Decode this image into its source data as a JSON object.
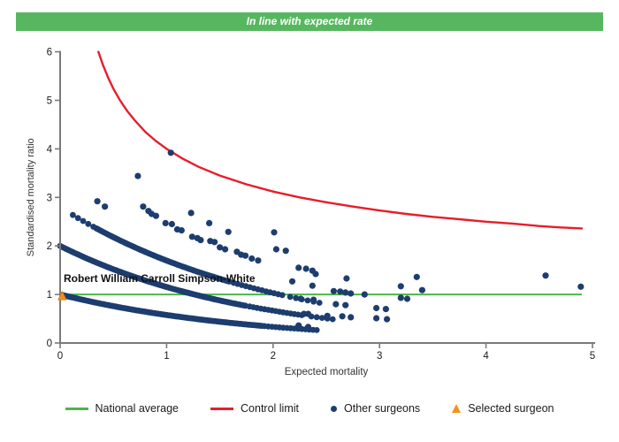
{
  "banner": {
    "title": "In line with expected rate",
    "bg_color": "#57b760",
    "text_color": "#ffffff"
  },
  "chart_data": {
    "type": "scatter",
    "title": "",
    "xlabel": "Expected mortality",
    "ylabel": "Standardised mortality ratio",
    "xlim": [
      0,
      5
    ],
    "ylim": [
      0,
      6
    ],
    "x_ticks": [
      0,
      1,
      2,
      3,
      4,
      5
    ],
    "y_ticks": [
      0,
      1,
      2,
      3,
      4,
      5,
      6
    ],
    "grid": false,
    "axis_color": "#7a7a7a",
    "national_average": {
      "label": "National average",
      "y": 1.0,
      "x_start": 0.0,
      "x_end": 4.9,
      "color": "#4bb648"
    },
    "control_limit": {
      "label": "Control limit",
      "color": "#e71d2b",
      "formula": "SMR = 1 + 3/sqrt(E)",
      "points": [
        [
          0.36,
          6.0
        ],
        [
          0.4,
          5.74
        ],
        [
          0.45,
          5.47
        ],
        [
          0.5,
          5.24
        ],
        [
          0.56,
          5.01
        ],
        [
          0.63,
          4.78
        ],
        [
          0.7,
          4.59
        ],
        [
          0.8,
          4.35
        ],
        [
          0.9,
          4.16
        ],
        [
          1.0,
          4.0
        ],
        [
          1.15,
          3.8
        ],
        [
          1.3,
          3.63
        ],
        [
          1.5,
          3.45
        ],
        [
          1.75,
          3.27
        ],
        [
          2.0,
          3.12
        ],
        [
          2.25,
          3.0
        ],
        [
          2.5,
          2.9
        ],
        [
          2.75,
          2.81
        ],
        [
          3.0,
          2.73
        ],
        [
          3.25,
          2.66
        ],
        [
          3.5,
          2.6
        ],
        [
          3.75,
          2.55
        ],
        [
          4.0,
          2.5
        ],
        [
          4.25,
          2.46
        ],
        [
          4.5,
          2.41
        ],
        [
          4.7,
          2.38
        ],
        [
          4.9,
          2.36
        ]
      ]
    },
    "selected_surgeon": {
      "label": "Selected surgeon",
      "name": "Robert William Carroll Simpson-White",
      "x": 0.02,
      "y": 0.97,
      "color": "#f4911e",
      "edge_color": "#d97b16",
      "name_color": "#111111"
    },
    "other_surgeons": {
      "label": "Other surgeons",
      "color": "#1d3d6f",
      "bands": [
        {
          "y0": 1.0,
          "k": 0.55,
          "segments": [
            [
              0.02,
              1.9,
              0.014
            ],
            [
              1.92,
              2.42,
              0.035
            ]
          ]
        },
        {
          "y0": 2.0,
          "k": 0.55,
          "segments": [
            [
              0.0,
              1.75,
              0.015
            ],
            [
              1.78,
              2.3,
              0.035
            ],
            [
              2.36,
              2.56,
              0.05
            ]
          ]
        },
        {
          "y0": 2.8,
          "k": 0.5,
          "segments": [
            [
              0.12,
              0.32,
              0.048
            ],
            [
              0.34,
              1.6,
              0.016
            ],
            [
              1.63,
              2.1,
              0.038
            ],
            [
              2.16,
              2.44,
              0.055
            ]
          ]
        }
      ],
      "points": [
        [
          0.35,
          2.92
        ],
        [
          0.42,
          2.81
        ],
        [
          0.73,
          3.44
        ],
        [
          0.78,
          2.81
        ],
        [
          0.83,
          2.72
        ],
        [
          0.86,
          2.66
        ],
        [
          0.9,
          2.62
        ],
        [
          0.99,
          2.47
        ],
        [
          1.04,
          3.92
        ],
        [
          1.05,
          2.45
        ],
        [
          1.1,
          2.34
        ],
        [
          1.14,
          2.32
        ],
        [
          1.23,
          2.68
        ],
        [
          1.24,
          2.19
        ],
        [
          1.29,
          2.16
        ],
        [
          1.32,
          2.12
        ],
        [
          1.4,
          2.47
        ],
        [
          1.41,
          2.1
        ],
        [
          1.45,
          2.08
        ],
        [
          1.5,
          1.97
        ],
        [
          1.55,
          1.93
        ],
        [
          1.58,
          2.29
        ],
        [
          1.66,
          1.88
        ],
        [
          1.7,
          1.82
        ],
        [
          1.74,
          1.8
        ],
        [
          1.8,
          1.74
        ],
        [
          1.86,
          1.7
        ],
        [
          2.01,
          2.28
        ],
        [
          2.03,
          1.93
        ],
        [
          2.12,
          1.9
        ],
        [
          2.18,
          1.27
        ],
        [
          2.24,
          1.55
        ],
        [
          2.24,
          0.36
        ],
        [
          2.26,
          0.91
        ],
        [
          2.29,
          0.6
        ],
        [
          2.31,
          1.53
        ],
        [
          2.33,
          0.6
        ],
        [
          2.33,
          0.33
        ],
        [
          2.37,
          1.49
        ],
        [
          2.37,
          1.18
        ],
        [
          2.38,
          0.89
        ],
        [
          2.4,
          1.42
        ],
        [
          2.51,
          0.56
        ],
        [
          2.57,
          1.07
        ],
        [
          2.59,
          0.8
        ],
        [
          2.63,
          1.06
        ],
        [
          2.65,
          0.55
        ],
        [
          2.68,
          1.04
        ],
        [
          2.68,
          0.78
        ],
        [
          2.69,
          1.33
        ],
        [
          2.73,
          1.02
        ],
        [
          2.73,
          0.53
        ],
        [
          2.86,
          1.0
        ],
        [
          2.97,
          0.72
        ],
        [
          2.97,
          0.51
        ],
        [
          3.06,
          0.7
        ],
        [
          3.07,
          0.49
        ],
        [
          3.2,
          1.17
        ],
        [
          3.2,
          0.93
        ],
        [
          3.26,
          0.91
        ],
        [
          3.35,
          1.36
        ],
        [
          3.4,
          1.09
        ],
        [
          4.56,
          1.39
        ],
        [
          4.89,
          1.16
        ]
      ]
    }
  },
  "legend": {
    "items": [
      {
        "label": "National average",
        "swatch": "line",
        "color": "#4bb648"
      },
      {
        "label": "Control limit",
        "swatch": "line",
        "color": "#e71d2b"
      },
      {
        "label": "Other surgeons",
        "swatch": "dot",
        "color": "#1d3d6f"
      },
      {
        "label": "Selected surgeon",
        "swatch": "triangle",
        "color": "#f4911e"
      }
    ]
  }
}
